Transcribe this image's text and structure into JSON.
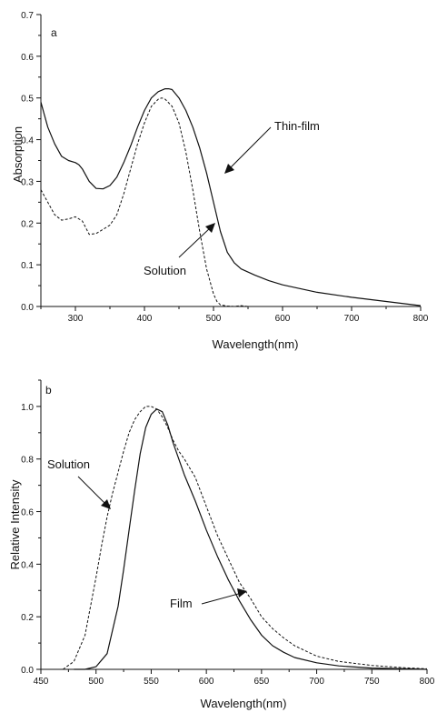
{
  "chart_data": [
    {
      "type": "line",
      "panel_label": "a",
      "xlabel": "Wavelength(nm)",
      "ylabel": "Absorption",
      "xlim": [
        250,
        800
      ],
      "ylim": [
        0.0,
        0.7
      ],
      "xticks": [
        300,
        400,
        500,
        600,
        700,
        800
      ],
      "yticks": [
        0.0,
        0.1,
        0.2,
        0.3,
        0.4,
        0.5,
        0.6,
        0.7
      ],
      "ytick_labels": [
        "0.0",
        "0.1",
        "0.2",
        "0.3",
        "0.4",
        "0.5",
        "0.6",
        "0.7"
      ],
      "grid": false,
      "series": [
        {
          "name": "Thin-film",
          "style": "solid",
          "x": [
            250,
            255,
            260,
            270,
            280,
            290,
            300,
            305,
            310,
            320,
            330,
            340,
            350,
            360,
            370,
            380,
            390,
            400,
            410,
            420,
            430,
            435,
            440,
            450,
            460,
            470,
            480,
            490,
            500,
            510,
            520,
            530,
            540,
            560,
            580,
            600,
            650,
            700,
            750,
            800
          ],
          "y": [
            0.49,
            0.46,
            0.43,
            0.39,
            0.36,
            0.35,
            0.345,
            0.34,
            0.33,
            0.3,
            0.283,
            0.282,
            0.29,
            0.31,
            0.345,
            0.385,
            0.43,
            0.47,
            0.5,
            0.515,
            0.522,
            0.522,
            0.52,
            0.5,
            0.47,
            0.43,
            0.38,
            0.32,
            0.25,
            0.18,
            0.13,
            0.105,
            0.09,
            0.075,
            0.062,
            0.052,
            0.034,
            0.022,
            0.012,
            0.002
          ]
        },
        {
          "name": "Solution",
          "style": "dashed",
          "x": [
            250,
            260,
            270,
            280,
            290,
            300,
            310,
            320,
            330,
            340,
            350,
            360,
            370,
            380,
            390,
            400,
            410,
            420,
            425,
            430,
            440,
            450,
            460,
            470,
            480,
            490,
            500,
            505,
            510,
            520,
            530,
            540,
            550
          ],
          "y": [
            0.28,
            0.25,
            0.22,
            0.207,
            0.21,
            0.215,
            0.205,
            0.173,
            0.175,
            0.185,
            0.195,
            0.22,
            0.27,
            0.33,
            0.39,
            0.44,
            0.48,
            0.497,
            0.5,
            0.497,
            0.48,
            0.44,
            0.37,
            0.28,
            0.18,
            0.09,
            0.03,
            0.012,
            0.004,
            0.001,
            0.0,
            0.002,
            0.0
          ]
        }
      ],
      "annotations": [
        {
          "text": "Thin-film"
        },
        {
          "text": "Solution"
        }
      ]
    },
    {
      "type": "line",
      "panel_label": "b",
      "xlabel": "Wavelength(nm)",
      "ylabel": "Relative Intensity",
      "xlim": [
        450,
        800
      ],
      "ylim": [
        0.0,
        1.1
      ],
      "xticks": [
        450,
        500,
        550,
        600,
        650,
        700,
        750,
        800
      ],
      "yticks": [
        0.0,
        0.2,
        0.4,
        0.6,
        0.8,
        1.0
      ],
      "ytick_labels": [
        "0.0",
        "0.2",
        "0.4",
        "0.6",
        "0.8",
        "1.0"
      ],
      "grid": false,
      "series": [
        {
          "name": "Solution",
          "style": "dashed",
          "x": [
            470,
            480,
            490,
            500,
            505,
            510,
            515,
            520,
            525,
            530,
            535,
            540,
            545,
            550,
            555,
            560,
            565,
            570,
            575,
            580,
            590,
            600,
            610,
            620,
            630,
            640,
            650,
            660,
            670,
            680,
            700,
            720,
            750,
            780,
            800
          ],
          "y": [
            0.0,
            0.03,
            0.13,
            0.35,
            0.47,
            0.58,
            0.67,
            0.75,
            0.83,
            0.9,
            0.95,
            0.98,
            1.0,
            1.0,
            0.99,
            0.96,
            0.92,
            0.87,
            0.83,
            0.8,
            0.73,
            0.62,
            0.51,
            0.42,
            0.33,
            0.27,
            0.2,
            0.155,
            0.12,
            0.09,
            0.05,
            0.03,
            0.015,
            0.006,
            0.002
          ]
        },
        {
          "name": "Film",
          "style": "solid",
          "x": [
            480,
            490,
            500,
            510,
            520,
            525,
            530,
            535,
            540,
            545,
            550,
            555,
            560,
            565,
            570,
            575,
            580,
            590,
            600,
            610,
            620,
            630,
            640,
            650,
            660,
            670,
            680,
            700,
            720,
            750,
            780,
            800
          ],
          "y": [
            0.0,
            0.0,
            0.01,
            0.06,
            0.24,
            0.38,
            0.53,
            0.68,
            0.82,
            0.92,
            0.97,
            0.99,
            0.98,
            0.93,
            0.86,
            0.8,
            0.74,
            0.64,
            0.53,
            0.43,
            0.34,
            0.26,
            0.19,
            0.13,
            0.09,
            0.065,
            0.045,
            0.025,
            0.013,
            0.005,
            0.002,
            0.0
          ]
        }
      ],
      "annotations": [
        {
          "text": "Solution"
        },
        {
          "text": "Film"
        }
      ]
    }
  ]
}
